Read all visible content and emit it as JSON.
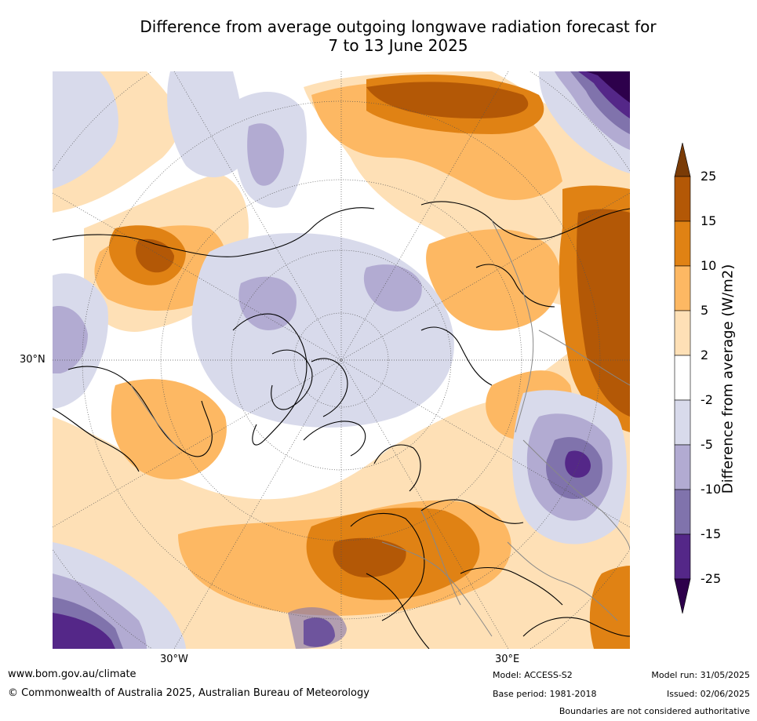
{
  "title": {
    "line1": "Difference from average outgoing longwave radiation forecast for",
    "line2": "7 to 13 June 2025"
  },
  "map": {
    "projection": "north-polar-stereographic",
    "lat_labels": [
      "30°N"
    ],
    "lon_labels": [
      "30°W",
      "30°E"
    ],
    "gridlines": "dotted"
  },
  "legend": {
    "label": "Difference from average (W/m2)",
    "ticks": [
      "25",
      "15",
      "10",
      "5",
      "2",
      "-2",
      "-5",
      "-10",
      "-15",
      "-25"
    ],
    "colors": [
      "#7a3b06",
      "#b35806",
      "#e08214",
      "#fdb863",
      "#fee0b6",
      "#ffffff",
      "#d8daeb",
      "#b2abd2",
      "#8073ac",
      "#542788",
      "#2d004b"
    ]
  },
  "footer": {
    "website": "www.bom.gov.au/climate",
    "copyright": "© Commonwealth of Australia 2025, Australian Bureau of Meteorology",
    "model": "Model: ACCESS-S2",
    "base_period": "Base period: 1981-2018",
    "model_run": "Model run: 31/05/2025",
    "issued": "Issued: 02/06/2025",
    "disclaimer": "Boundaries are not considered authoritative"
  }
}
